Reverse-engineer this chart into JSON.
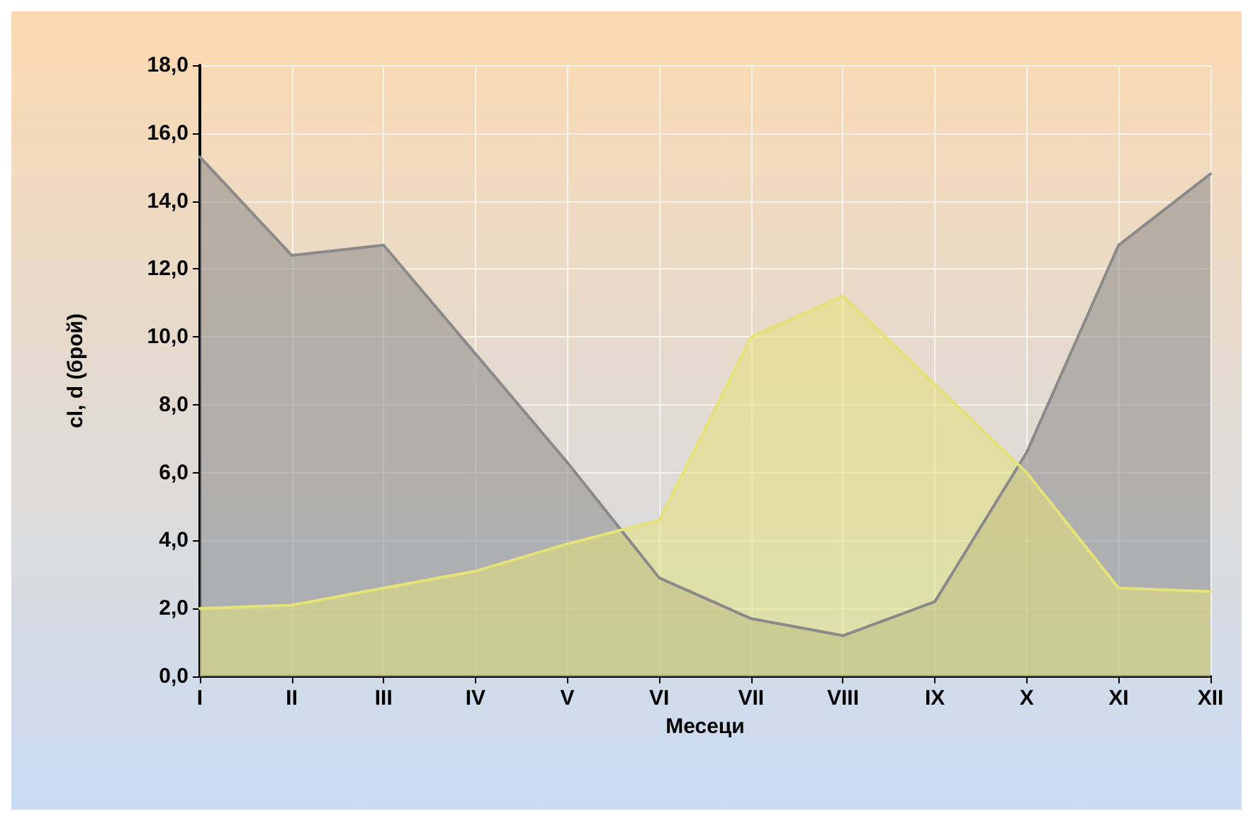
{
  "chart_data": {
    "type": "area",
    "xlabel": "Месеци",
    "ylabel": "cl, d (брой)",
    "categories": [
      "I",
      "II",
      "III",
      "IV",
      "V",
      "VI",
      "VII",
      "VIII",
      "IX",
      "X",
      "XI",
      "XII"
    ],
    "series": [
      {
        "color": "#8a8a8a",
        "values": [
          15.3,
          12.4,
          12.7,
          9.5,
          6.3,
          2.9,
          1.7,
          1.2,
          2.2,
          6.6,
          12.7,
          14.8
        ]
      },
      {
        "color": "#e6e27a",
        "values": [
          2.0,
          2.1,
          2.6,
          3.1,
          3.9,
          4.6,
          10.0,
          11.2,
          8.6,
          6.0,
          2.6,
          2.5
        ]
      }
    ],
    "ylim": [
      0,
      18
    ],
    "yticks": [
      {
        "value": 0,
        "label": "0,0"
      },
      {
        "value": 2,
        "label": "2,0"
      },
      {
        "value": 4,
        "label": "4,0"
      },
      {
        "value": 6,
        "label": "6,0"
      },
      {
        "value": 8,
        "label": "8,0"
      },
      {
        "value": 10,
        "label": "10,0"
      },
      {
        "value": 12,
        "label": "12,0"
      },
      {
        "value": 14,
        "label": "14,0"
      },
      {
        "value": 16,
        "label": "16,0"
      },
      {
        "value": 18,
        "label": "18,0"
      }
    ],
    "grid": true,
    "marker": "none",
    "line_style": "solid"
  }
}
